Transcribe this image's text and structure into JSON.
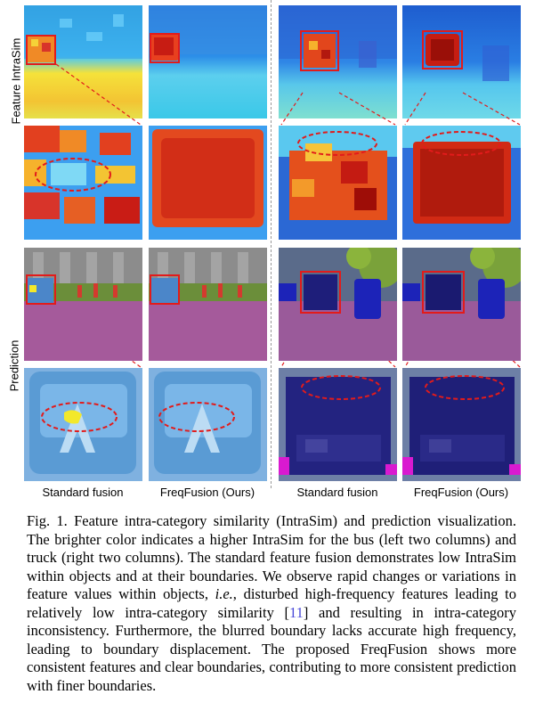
{
  "row_labels": {
    "feature": "Feature IntraSim",
    "prediction": "Prediction"
  },
  "column_captions": [
    "Standard fusion",
    "FreqFusion (Ours)",
    "Standard fusion",
    "FreqFusion (Ours)"
  ],
  "caption": {
    "p1": "Fig. 1.  Feature intra-category similarity (IntraSim) and prediction visualization. The brighter color indicates a higher IntraSim for the bus (left two columns) and truck (right two columns). The standard feature fusion demonstrates low IntraSim within objects and at their boundaries. We observe rapid changes or variations in feature values within objects, ",
    "ie": "i.e.",
    "p2": ", disturbed high-frequency features leading to relatively low intra-category similarity [",
    "cite": "11",
    "p3": "] and resulting in intra-category inconsistency. Furthermore, the blurred boundary lacks accurate high frequency, leading to boundary displacement. The proposed FreqFusion shows more consistent features and clear boundaries, contributing to more consistent prediction with finer boundaries."
  },
  "colors": {
    "red": "#e21b1b",
    "cite": "#4a4ad8"
  }
}
